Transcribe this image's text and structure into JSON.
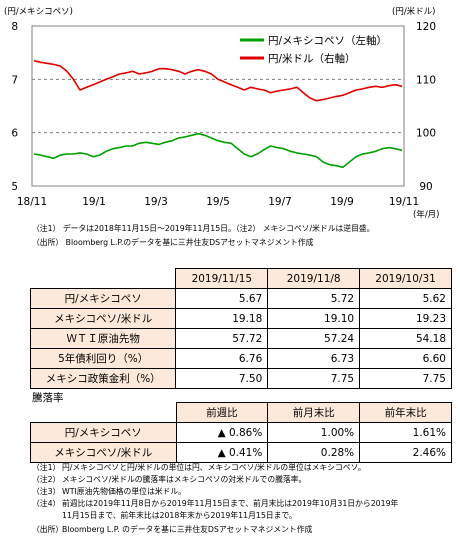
{
  "chart_data": {
    "type": "line",
    "left_axis_label": "(円/メキシコペソ)",
    "right_axis_label": "(円/米ドル)",
    "x_unit_label": "(年/月)",
    "left_ylim": [
      5,
      8
    ],
    "right_ylim": [
      90,
      120
    ],
    "left_ticks": [
      "5",
      "6",
      "7",
      "8"
    ],
    "right_ticks": [
      "90",
      "100",
      "110",
      "120"
    ],
    "x_ticks": [
      "18/11",
      "19/1",
      "19/3",
      "19/5",
      "19/7",
      "19/9",
      "19/11"
    ],
    "gridlines": "dashed at left-axis 6 and 7",
    "legend_position": "top-right",
    "series": [
      {
        "name": "円/メキシコペソ（左軸）",
        "color": "#00a000",
        "axis": "left",
        "values": [
          5.6,
          5.58,
          5.55,
          5.52,
          5.58,
          5.6,
          5.6,
          5.62,
          5.6,
          5.55,
          5.58,
          5.65,
          5.7,
          5.72,
          5.75,
          5.75,
          5.8,
          5.82,
          5.8,
          5.78,
          5.82,
          5.85,
          5.9,
          5.92,
          5.95,
          5.98,
          5.95,
          5.9,
          5.85,
          5.82,
          5.8,
          5.7,
          5.6,
          5.55,
          5.6,
          5.68,
          5.75,
          5.72,
          5.7,
          5.65,
          5.62,
          5.6,
          5.58,
          5.55,
          5.45,
          5.4,
          5.38,
          5.35,
          5.45,
          5.55,
          5.6,
          5.62,
          5.65,
          5.7,
          5.72,
          5.7,
          5.67
        ]
      },
      {
        "name": "円/米ドル（右軸）",
        "color": "#e00000",
        "axis": "right",
        "values": [
          113.5,
          113.2,
          113.0,
          112.8,
          112.5,
          111.5,
          110.0,
          108.0,
          108.5,
          109.0,
          109.5,
          110.0,
          110.5,
          111.0,
          111.2,
          111.5,
          111.0,
          111.2,
          111.5,
          112.0,
          112.0,
          111.8,
          111.5,
          111.0,
          111.5,
          111.8,
          111.5,
          111.0,
          110.0,
          109.5,
          109.0,
          108.5,
          108.0,
          108.5,
          108.2,
          108.0,
          107.5,
          107.8,
          108.0,
          108.2,
          108.5,
          107.5,
          106.5,
          106.0,
          106.2,
          106.5,
          106.8,
          107.0,
          107.5,
          108.0,
          108.2,
          108.5,
          108.7,
          108.5,
          108.8,
          109.0,
          108.7
        ]
      }
    ]
  },
  "chart_notes": [
    "（注1） データは2018年11月15日～2019年11月15日。（注2） メキシコペソ/米ドルは逆目盛。",
    "（出所） Bloomberg L.P.のデータを基に三井住友DSアセットマネジメント作成"
  ],
  "table": {
    "headers": [
      "",
      "2019/11/15",
      "2019/11/8",
      "2019/10/31"
    ],
    "rows": [
      {
        "label": "円/メキシコペソ",
        "values": [
          "5.67",
          "5.72",
          "5.62"
        ]
      },
      {
        "label": "メキシコペソ/米ドル",
        "values": [
          "19.18",
          "19.10",
          "19.23"
        ]
      },
      {
        "label": "ＷＴＩ原油先物",
        "values": [
          "57.72",
          "57.24",
          "54.18"
        ]
      },
      {
        "label": "5年債利回り（%）",
        "values": [
          "6.76",
          "6.73",
          "6.60"
        ]
      },
      {
        "label": "メキシコ政策金利（%）",
        "values": [
          "7.50",
          "7.75",
          "7.75"
        ]
      }
    ]
  },
  "rates": {
    "section_label": "騰落率",
    "headers": [
      "",
      "前週比",
      "前月末比",
      "前年末比"
    ],
    "rows": [
      {
        "label": "円/メキシコペソ",
        "values": [
          "▲ 0.86%",
          "1.00%",
          "1.61%"
        ]
      },
      {
        "label": "メキシコペソ/米ドル",
        "values": [
          "▲ 0.41%",
          "0.28%",
          "2.46%"
        ]
      }
    ]
  },
  "footnotes": [
    {
      "key": "（注1）",
      "text": "円/メキシコペソと円/米ドルの単位は円、メキシコペソ/米ドルの単位はメキシコペソ。"
    },
    {
      "key": "（注2）",
      "text": "メキシコペソ/米ドルの騰落率はメキシコペソの対米ドルでの騰落率。"
    },
    {
      "key": "（注3）",
      "text": "WTI原油先物価格の単位は米ドル。"
    },
    {
      "key": "（注4）",
      "text": "前週比は2019年11月8日から2019年11月15日まで、前月末比は2019年10月31日から2019年"
    },
    {
      "key": "",
      "text": "11月15日まで、前年末比は2018年末から2019年11月15日まで。"
    },
    {
      "key": "（出所）",
      "text": "Bloomberg L.P. のデータを基に三井住友DSアセットマネジメント作成"
    }
  ]
}
